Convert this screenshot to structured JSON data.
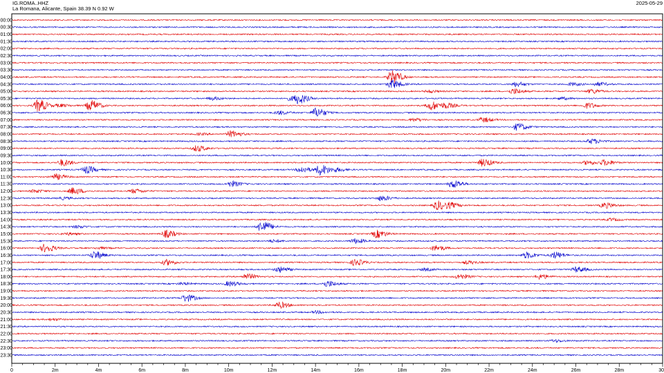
{
  "header": {
    "station": "IG.ROMA..HHZ",
    "location": "La Romana, Alicante, Spain  38.39 N 0.92 W",
    "date": "2025-05-29"
  },
  "chart_data": {
    "type": "line",
    "title": "",
    "row_labels": [
      "00:00",
      "00:30",
      "01:00",
      "01:30",
      "02:00",
      "02:30",
      "03:00",
      "03:30",
      "04:00",
      "04:30",
      "05:00",
      "05:30",
      "06:00",
      "06:30",
      "07:00",
      "07:30",
      "08:00",
      "08:30",
      "09:00",
      "09:30",
      "10:00",
      "10:30",
      "11:00",
      "11:30",
      "12:00",
      "12:30",
      "13:00",
      "13:30",
      "14:00",
      "14:30",
      "15:00",
      "15:30",
      "16:00",
      "16:30",
      "17:00",
      "17:30",
      "18:00",
      "18:30",
      "19:00",
      "19:30",
      "20:00",
      "20:30",
      "21:00",
      "21:30",
      "22:00",
      "22:30",
      "23:00",
      "23:30"
    ],
    "x_ticks": [
      "0",
      "2m",
      "4m",
      "6m",
      "8m",
      "10m",
      "12m",
      "14m",
      "16m",
      "18m",
      "20m",
      "22m",
      "24m",
      "26m",
      "28m",
      "30"
    ],
    "xlim": [
      0,
      30
    ],
    "colors": [
      "#e00000",
      "#0000cc"
    ],
    "events_minutes": [
      [
        4,
        [
          [
            17.5,
            2.2
          ]
        ]
      ],
      [
        4.5,
        [
          [
            17.5,
            1.4
          ],
          [
            23.2,
            0.8
          ],
          [
            27.0,
            0.6
          ],
          [
            25.8,
            0.5
          ]
        ]
      ],
      [
        5,
        [
          [
            23.1,
            0.9
          ],
          [
            26.7,
            0.7
          ],
          [
            19.2,
            0.4
          ]
        ]
      ],
      [
        5.5,
        [
          [
            9.2,
            0.5
          ],
          [
            13.2,
            1.5
          ],
          [
            12.8,
            0.6
          ],
          [
            25.3,
            0.4
          ]
        ]
      ],
      [
        6,
        [
          [
            1.2,
            2.0
          ],
          [
            3.6,
            1.8
          ],
          [
            2.2,
            0.5
          ],
          [
            19.3,
            1.5
          ],
          [
            20.0,
            0.8
          ],
          [
            26.5,
            0.9
          ]
        ]
      ],
      [
        6.5,
        [
          [
            14.0,
            1.6
          ],
          [
            12.3,
            0.6
          ]
        ]
      ],
      [
        7,
        [
          [
            18.5,
            0.5
          ],
          [
            21.7,
            0.8
          ]
        ]
      ],
      [
        7.5,
        [
          [
            23.3,
            1.2
          ]
        ]
      ],
      [
        8,
        [
          [
            10.1,
            1.1
          ],
          [
            8.6,
            0.3
          ]
        ]
      ],
      [
        8.5,
        [
          [
            26.7,
            0.8
          ]
        ]
      ],
      [
        9,
        [
          [
            8.5,
            1.0
          ]
        ]
      ],
      [
        10,
        [
          [
            2.3,
            1.1
          ],
          [
            21.7,
            1.3
          ],
          [
            27.3,
            0.9
          ],
          [
            26.5,
            0.7
          ]
        ]
      ],
      [
        10.5,
        [
          [
            3.4,
            1.2
          ],
          [
            14.2,
            1.8
          ],
          [
            13.3,
            1.0
          ],
          [
            15.0,
            0.5
          ]
        ]
      ],
      [
        11,
        [
          [
            2.0,
            0.9
          ]
        ]
      ],
      [
        11.5,
        [
          [
            10.1,
            0.9
          ],
          [
            20.3,
            1.3
          ]
        ]
      ],
      [
        12,
        [
          [
            2.8,
            1.1
          ],
          [
            5.6,
            0.7
          ],
          [
            1.0,
            0.5
          ]
        ]
      ],
      [
        12.5,
        [
          [
            17.0,
            0.8
          ],
          [
            2.3,
            0.4
          ]
        ]
      ],
      [
        13,
        [
          [
            19.6,
            1.5
          ],
          [
            20.2,
            0.7
          ],
          [
            27.3,
            0.9
          ]
        ]
      ],
      [
        14,
        [
          [
            27.6,
            0.4
          ]
        ]
      ],
      [
        14.5,
        [
          [
            11.5,
            1.9
          ],
          [
            3.0,
            0.4
          ]
        ]
      ],
      [
        15,
        [
          [
            7.1,
            1.2
          ],
          [
            16.8,
            1.3
          ],
          [
            2.5,
            0.4
          ]
        ]
      ],
      [
        15.5,
        [
          [
            15.8,
            0.8
          ],
          [
            12.0,
            0.4
          ]
        ]
      ],
      [
        16,
        [
          [
            1.5,
            1.3
          ],
          [
            19.5,
            0.9
          ],
          [
            4.0,
            0.3
          ]
        ]
      ],
      [
        16.5,
        [
          [
            3.8,
            1.3
          ],
          [
            23.7,
            1.0
          ],
          [
            25.0,
            1.1
          ]
        ]
      ],
      [
        17,
        [
          [
            7.1,
            0.9
          ],
          [
            15.8,
            1.0
          ],
          [
            21.0,
            0.5
          ]
        ]
      ],
      [
        17.5,
        [
          [
            12.3,
            0.9
          ],
          [
            26.0,
            0.9
          ],
          [
            19.0,
            0.4
          ]
        ]
      ],
      [
        18,
        [
          [
            10.8,
            0.9
          ],
          [
            20.6,
            0.8
          ],
          [
            24.3,
            0.8
          ]
        ]
      ],
      [
        18.5,
        [
          [
            10.0,
            0.8
          ],
          [
            14.5,
            1.0
          ],
          [
            7.8,
            0.4
          ]
        ]
      ],
      [
        19.5,
        [
          [
            8.0,
            1.2
          ]
        ]
      ],
      [
        20,
        [
          [
            12.3,
            1.0
          ]
        ]
      ],
      [
        20.5,
        [
          [
            14.0,
            0.4
          ]
        ]
      ],
      [
        21,
        [
          [
            1.8,
            0.3
          ]
        ]
      ],
      [
        22.5,
        [
          [
            25.0,
            0.4
          ]
        ]
      ]
    ]
  }
}
